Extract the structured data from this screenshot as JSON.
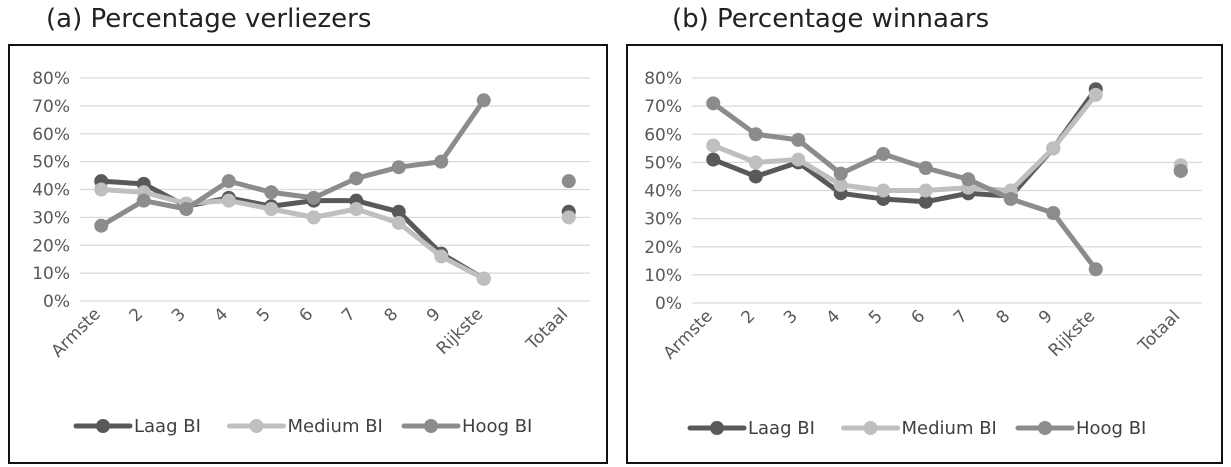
{
  "panels": {
    "a": {
      "title": "(a)  Percentage verliezers"
    },
    "b": {
      "title": "(b)  Percentage winnaars"
    }
  },
  "legend_labels": [
    "Laag BI",
    "Medium BI",
    "Hoog BI"
  ],
  "colors": {
    "laag": "#595959",
    "medium": "#bfbfbf",
    "hoog": "#8c8c8c",
    "grid": "#d9d9d9",
    "axis_text": "#595959"
  },
  "chart_data": [
    {
      "type": "line",
      "title": "(a)  Percentage verliezers",
      "categories": [
        "Armste",
        "2",
        "3",
        "4",
        "5",
        "6",
        "7",
        "8",
        "9",
        "Rijkste",
        "",
        "Totaal"
      ],
      "ylim": [
        0,
        0.8
      ],
      "yticks": [
        "0%",
        "10%",
        "20%",
        "30%",
        "40%",
        "50%",
        "60%",
        "70%",
        "80%"
      ],
      "grid": true,
      "legend": "bottom",
      "series": [
        {
          "name": "Laag BI",
          "values": [
            0.43,
            0.42,
            0.34,
            0.37,
            0.34,
            0.36,
            0.36,
            0.32,
            0.17,
            0.08,
            null,
            0.32
          ]
        },
        {
          "name": "Medium BI",
          "values": [
            0.4,
            0.39,
            0.35,
            0.36,
            0.33,
            0.3,
            0.33,
            0.28,
            0.16,
            0.08,
            null,
            0.3
          ]
        },
        {
          "name": "Hoog BI",
          "values": [
            0.27,
            0.36,
            0.33,
            0.43,
            0.39,
            0.37,
            0.44,
            0.48,
            0.5,
            0.72,
            null,
            0.43
          ]
        }
      ]
    },
    {
      "type": "line",
      "title": "(b)  Percentage winnaars",
      "categories": [
        "Armste",
        "2",
        "3",
        "4",
        "5",
        "6",
        "7",
        "8",
        "9",
        "Rijkste",
        "",
        "Totaal"
      ],
      "ylim": [
        0,
        0.8
      ],
      "yticks": [
        "0%",
        "10%",
        "20%",
        "30%",
        "40%",
        "50%",
        "60%",
        "70%",
        "80%"
      ],
      "grid": true,
      "legend": "bottom",
      "series": [
        {
          "name": "Laag BI",
          "values": [
            0.51,
            0.45,
            0.5,
            0.39,
            0.37,
            0.36,
            0.39,
            0.38,
            0.55,
            0.76,
            null,
            0.47
          ]
        },
        {
          "name": "Medium BI",
          "values": [
            0.56,
            0.5,
            0.51,
            0.42,
            0.4,
            0.4,
            0.41,
            0.4,
            0.55,
            0.74,
            null,
            0.49
          ]
        },
        {
          "name": "Hoog BI",
          "values": [
            0.71,
            0.6,
            0.58,
            0.46,
            0.53,
            0.48,
            0.44,
            0.37,
            0.32,
            0.12,
            null,
            0.47
          ]
        }
      ]
    }
  ]
}
